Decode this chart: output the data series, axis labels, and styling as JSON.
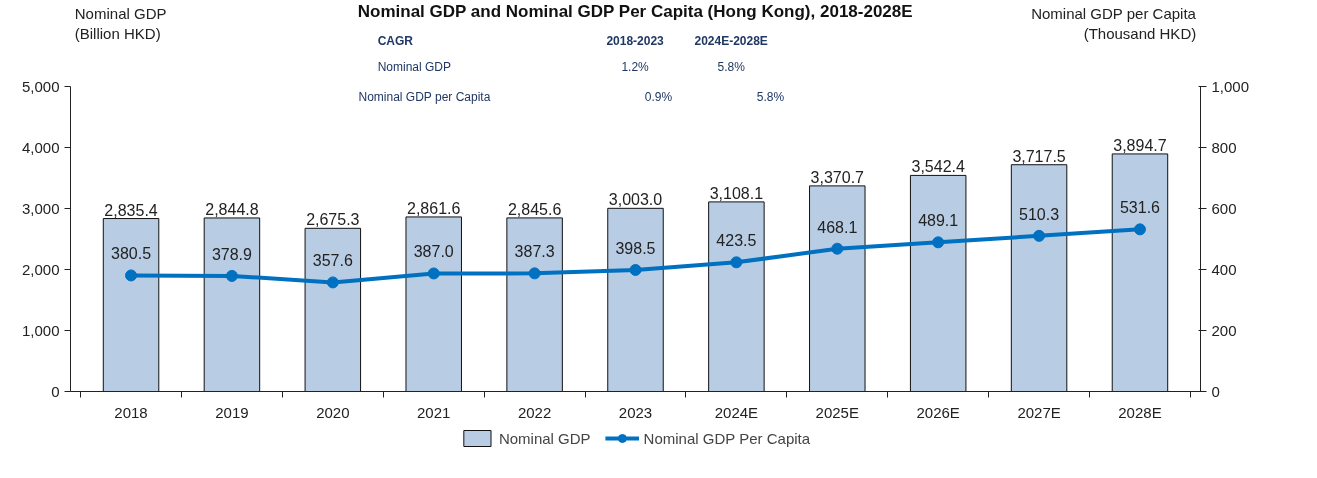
{
  "chart_data": {
    "type": "bar",
    "title": "Nominal GDP and Nominal GDP Per Capita (Hong Kong), 2018-2028E",
    "ylabel": "Nominal GDP\n(Billion HKD)",
    "y2label": "Nominal GDP per Capita\n(Thousand HKD)",
    "categories": [
      "2018",
      "2019",
      "2020",
      "2021",
      "2022",
      "2023",
      "2024E",
      "2025E",
      "2026E",
      "2027E",
      "2028E"
    ],
    "series": [
      {
        "name": "Nominal GDP",
        "color": "#b8cce4",
        "values": [
          2835.4,
          2844.8,
          2675.3,
          2861.6,
          2845.6,
          3003.0,
          3108.1,
          3370.7,
          3542.4,
          3717.5,
          3894.7
        ],
        "value_labels": [
          "2,835.4",
          "2,844.8",
          "2,675.3",
          "2,861.6",
          "2,845.6",
          "3,003.0",
          "3,108.1",
          "3,370.7",
          "3,542.4",
          "3,717.5",
          "3,894.7"
        ]
      },
      {
        "name": "Nominal GDP Per Capita",
        "type": "line",
        "axis": "y2",
        "color": "#0070c0",
        "values": [
          380.5,
          378.9,
          357.6,
          387.0,
          387.3,
          398.5,
          423.5,
          468.1,
          489.1,
          510.3,
          531.6
        ],
        "value_labels": [
          "380.5",
          "378.9",
          "357.6",
          "387.0",
          "387.3",
          "398.5",
          "423.5",
          "468.1",
          "489.1",
          "510.3",
          "531.6"
        ]
      }
    ],
    "ylim": [
      0,
      5000
    ],
    "yticks": [
      0,
      {
        "value": 1000,
        "label": "1,000"
      },
      {
        "value": 2000,
        "label": "2,000"
      },
      {
        "value": 3000,
        "label": "3,000"
      },
      {
        "value": 4000,
        "label": "4,000"
      },
      {
        "value": 5000,
        "label": "5,000"
      }
    ],
    "y2lim": [
      0,
      1000
    ],
    "y2ticks": [
      0,
      200,
      400,
      600,
      800,
      {
        "value": 1000,
        "label": "1,000"
      }
    ],
    "grid": false,
    "legend": "bottom",
    "marker": "circle",
    "annotations": [
      "CAGR",
      "2018-2023",
      "2024E-2028E",
      "Nominal GDP",
      "1.2%",
      "5.8%",
      "Nominal GDP per Capita",
      "0.9%",
      "5.8%"
    ]
  }
}
